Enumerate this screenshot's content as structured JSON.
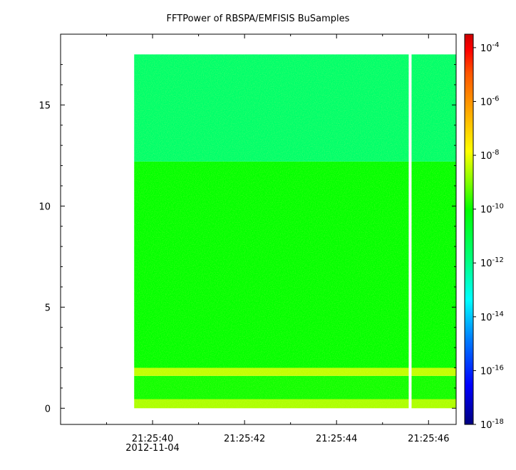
{
  "chart_data": {
    "type": "heatmap",
    "title": "FFTPower of RBSPA/EMFISIS  BuSamples",
    "xlabel": "",
    "ylabel": "",
    "x_ticks": [
      {
        "value": 40,
        "label": "21:25:40",
        "sublabel": "2012-11-04"
      },
      {
        "value": 42,
        "label": "21:25:42",
        "sublabel": ""
      },
      {
        "value": 44,
        "label": "21:25:44",
        "sublabel": ""
      },
      {
        "value": 46,
        "label": "21:25:46",
        "sublabel": ""
      }
    ],
    "y_ticks": [
      0,
      5,
      10,
      15
    ],
    "xlim": [
      38.0,
      46.6
    ],
    "ylim": [
      -0.8,
      18.5
    ],
    "data_x_range": [
      39.6,
      46.6
    ],
    "data_y_range": [
      0.0,
      17.5
    ],
    "gap_x": 45.6,
    "colorbar": {
      "scale": "log",
      "range_exponents": [
        -18,
        -3.5
      ],
      "tick_exponents": [
        -18,
        -16,
        -14,
        -12,
        -10,
        -8,
        -6,
        -4
      ],
      "base": "10",
      "colors": [
        "#00007f",
        "#0000ff",
        "#007fff",
        "#00ffff",
        "#00ff7f",
        "#00ff00",
        "#7fff00",
        "#ffff00",
        "#ffaa00",
        "#ff5500",
        "#ff0000",
        "#cc0000"
      ]
    },
    "bands": [
      {
        "y_range": [
          0.0,
          0.45
        ],
        "log_power": -8.6
      },
      {
        "y_range": [
          0.45,
          1.6
        ],
        "log_power": -9.9
      },
      {
        "y_range": [
          1.6,
          2.0
        ],
        "log_power": -8.4
      },
      {
        "y_range": [
          2.0,
          12.2
        ],
        "log_power": -10.0
      },
      {
        "y_range": [
          12.2,
          17.5
        ],
        "log_power": -11.6
      }
    ],
    "grid": false
  }
}
